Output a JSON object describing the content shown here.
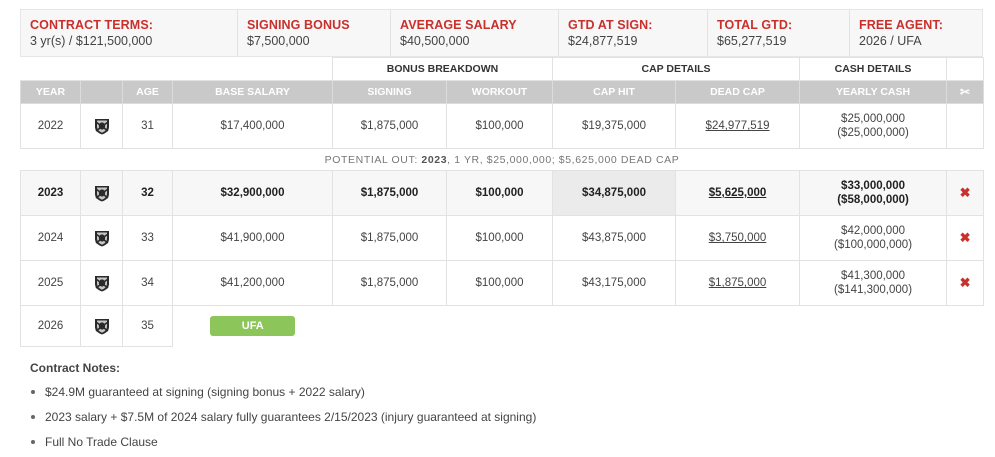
{
  "summary": [
    {
      "label": "CONTRACT TERMS:",
      "value": "3 yr(s) / $121,500,000"
    },
    {
      "label": "SIGNING BONUS",
      "value": "$7,500,000"
    },
    {
      "label": "AVERAGE SALARY",
      "value": "$40,500,000"
    },
    {
      "label": "GTD AT SIGN:",
      "value": "$24,877,519"
    },
    {
      "label": "TOTAL GTD:",
      "value": "$65,277,519"
    },
    {
      "label": "FREE AGENT:",
      "value": "2026 / UFA"
    }
  ],
  "groups": {
    "bonus": "BONUS BREAKDOWN",
    "cap": "CAP DETAILS",
    "cash": "CASH DETAILS"
  },
  "headers": {
    "year": "YEAR",
    "age": "AGE",
    "base": "BASE SALARY",
    "signing": "SIGNING",
    "workout": "WORKOUT",
    "caphit": "CAP HIT",
    "deadcap": "DEAD CAP",
    "yearly": "YEARLY CASH",
    "scissor_icon": "scissors-icon"
  },
  "rows": [
    {
      "year": "2022",
      "age": "31",
      "base": "$17,400,000",
      "signing": "$1,875,000",
      "workout": "$100,000",
      "caphit": "$19,375,000",
      "dead": "$24,977,519",
      "cash": "$25,000,000",
      "cum": "($25,000,000)",
      "cut": ""
    },
    {
      "year": "2023",
      "age": "32",
      "base": "$32,900,000",
      "signing": "$1,875,000",
      "workout": "$100,000",
      "caphit": "$34,875,000",
      "dead": "$5,625,000",
      "cash": "$33,000,000",
      "cum": "($58,000,000)",
      "cut": "✖"
    },
    {
      "year": "2024",
      "age": "33",
      "base": "$41,900,000",
      "signing": "$1,875,000",
      "workout": "$100,000",
      "caphit": "$43,875,000",
      "dead": "$3,750,000",
      "cash": "$42,000,000",
      "cum": "($100,000,000)",
      "cut": "✖"
    },
    {
      "year": "2025",
      "age": "34",
      "base": "$41,200,000",
      "signing": "$1,875,000",
      "workout": "$100,000",
      "caphit": "$43,175,000",
      "dead": "$1,875,000",
      "cash": "$41,300,000",
      "cum": "($141,300,000)",
      "cut": "✖"
    },
    {
      "year": "2026",
      "age": "35",
      "status": "UFA"
    }
  ],
  "potential_out": {
    "prefix": "POTENTIAL OUT: ",
    "year": "2023",
    "suffix": ", 1 YR, $25,000,000; $5,625,000 DEAD CAP"
  },
  "team_logo_icon": "raiders-shield-icon",
  "notes": {
    "title": "Contract Notes:",
    "items": [
      "$24.9M guaranteed at signing (signing bonus + 2022 salary)",
      "2023 salary + $7.5M of 2024 salary fully guarantees 2/15/2023 (injury guaranteed at signing)",
      "Full No Trade Clause"
    ]
  },
  "colors": {
    "accent_red": "#c9302c",
    "header_gray": "#c9c9c9",
    "ufa_green": "#8cc55a"
  }
}
